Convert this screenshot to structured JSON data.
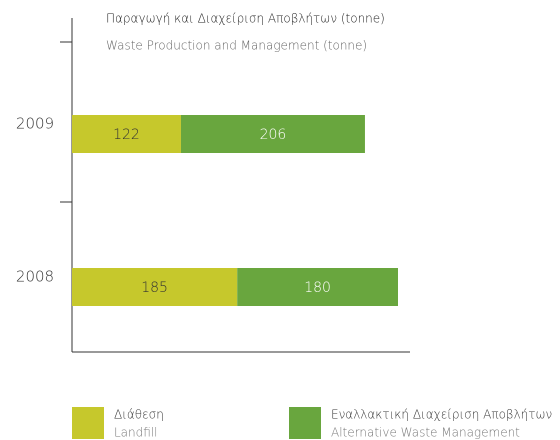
{
  "chart_data": {
    "type": "stacked-bar-horizontal",
    "title": "Παραγωγή και Διαχείριση Αποβλήτων (tonne)",
    "subtitle": "Waste Production and Management (tonne)",
    "categories": [
      "2009",
      "2008"
    ],
    "series": [
      {
        "name": "Διάθεση",
        "name_en": "Landfill",
        "color": "#c6c82c",
        "values": [
          122,
          185
        ]
      },
      {
        "name": "Εναλλακτική Διαχείριση Αποβλήτων",
        "name_en": "Alternative Waste Management",
        "color": "#69a63e",
        "values": [
          206,
          180
        ]
      }
    ]
  }
}
